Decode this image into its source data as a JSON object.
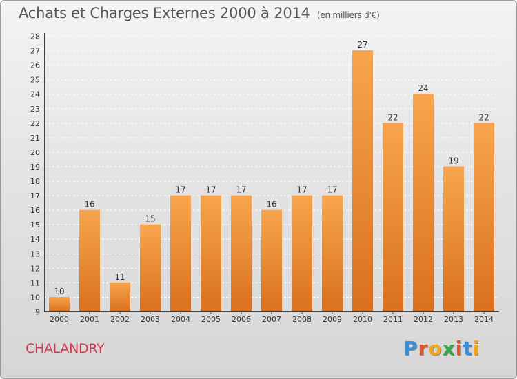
{
  "header": {
    "title": "Achats et Charges Externes 2000 à 2014",
    "subtitle": "(en milliers d'€)"
  },
  "footer": {
    "commune": "CHALANDRY",
    "logo_text": "Proxiti",
    "logo_colors": [
      "#3a8fd8",
      "#e8542a",
      "#f2a51e",
      "#3aa84a",
      "#e8542a",
      "#3a8fd8",
      "#f2a51e"
    ]
  },
  "chart_data": {
    "type": "bar",
    "categories": [
      "2000",
      "2001",
      "2002",
      "2003",
      "2004",
      "2005",
      "2006",
      "2007",
      "2008",
      "2009",
      "2010",
      "2011",
      "2012",
      "2013",
      "2014"
    ],
    "values": [
      10,
      16,
      11,
      15,
      17,
      17,
      17,
      16,
      17,
      17,
      27,
      22,
      24,
      19,
      22
    ],
    "data_labels": [
      "10",
      "16",
      "11",
      "15",
      "17",
      "17",
      "17",
      "16",
      "17",
      "17",
      "27",
      "22",
      "24",
      "19",
      "22"
    ],
    "yticks": [
      "9",
      "10",
      "11",
      "12",
      "13",
      "14",
      "15",
      "16",
      "17",
      "18",
      "19",
      "20",
      "21",
      "22",
      "23",
      "24",
      "25",
      "26",
      "27",
      "28"
    ],
    "ylim": [
      9,
      28
    ],
    "title": "Achats et Charges Externes 2000 à 2014",
    "xlabel": "",
    "ylabel": "",
    "grid": true,
    "legend": "none",
    "bar_color_top": "#f8a54e",
    "bar_color_bottom": "#d9701f"
  }
}
